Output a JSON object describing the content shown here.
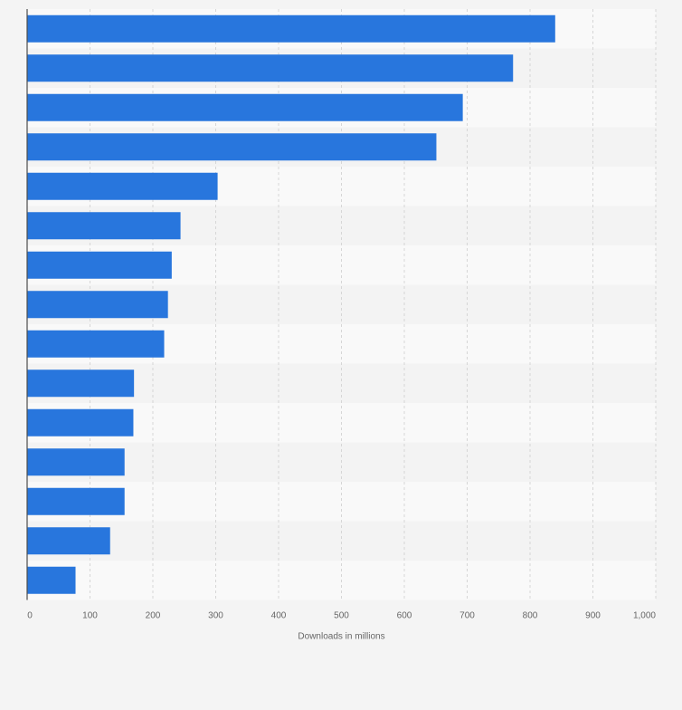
{
  "chart_data": {
    "type": "bar",
    "orientation": "horizontal",
    "title": "",
    "xlabel": "Downloads in millions",
    "ylabel": "",
    "xlim": [
      0,
      1000
    ],
    "ticks": [
      0,
      100,
      200,
      300,
      400,
      500,
      600,
      700,
      800,
      900,
      1000
    ],
    "tick_labels": [
      "0",
      "100",
      "200",
      "300",
      "400",
      "500",
      "600",
      "700",
      "800",
      "900",
      "1,000"
    ],
    "grid": true,
    "values": [
      840,
      773,
      693,
      651,
      303,
      244,
      230,
      224,
      218,
      170,
      169,
      155,
      155,
      132,
      77
    ],
    "colors": {
      "bar": "#2876dd",
      "band_light": "#f9f9f9",
      "band_dark": "#f3f3f3",
      "grid": "#d6d6d6",
      "axis": "#4a4a4a",
      "tick_text": "#666666",
      "page_background": "#f4f4f4"
    }
  }
}
